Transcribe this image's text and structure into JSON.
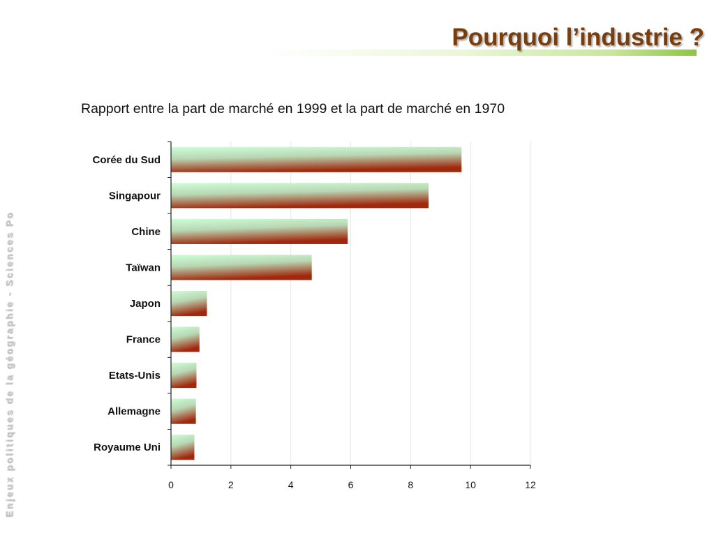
{
  "slide": {
    "title": "Pourquoi l’industrie ?",
    "side_text": "Enjeux politiques de la géographie - Sciences Po"
  },
  "colors": {
    "title": "#7a3d0c",
    "bar_top": "#ccffd6",
    "bar_bottom": "#a1280c",
    "accent_green": "#8cc63f"
  },
  "chart_data": {
    "type": "bar",
    "orientation": "horizontal",
    "title": "Rapport entre la part de marché en 1999 et la part de marché en 1970",
    "categories": [
      "Corée du Sud",
      "Singapour",
      "Chine",
      "Taïwan",
      "Japon",
      "France",
      "Etats-Unis",
      "Allemagne",
      "Royaume Uni"
    ],
    "values": [
      9.7,
      8.6,
      5.9,
      4.7,
      1.2,
      0.95,
      0.85,
      0.83,
      0.78
    ],
    "xlim": [
      0,
      12
    ],
    "xticks": [
      0,
      2,
      4,
      6,
      8,
      10,
      12
    ],
    "xlabel": "",
    "ylabel": "",
    "grid": "vertical",
    "legend": "none"
  }
}
